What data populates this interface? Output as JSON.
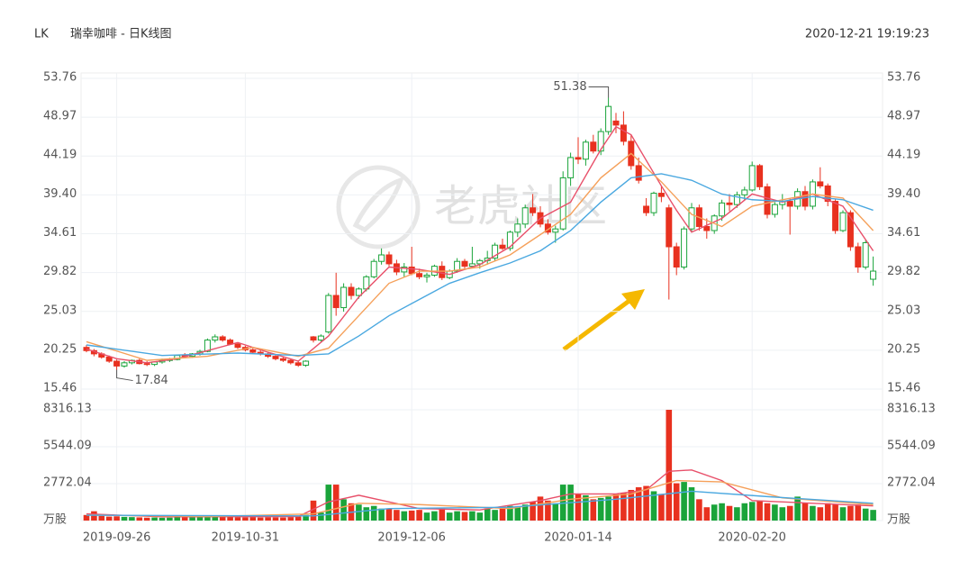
{
  "chart_data": {
    "type": "candlestick",
    "ticker": "LK",
    "title": "瑞幸咖啡 - 日K线图",
    "timestamp": "2020-12-21 19:19:23",
    "watermark": "老虎社区",
    "up_color": "#1aa43a",
    "down_color": "#e8311f",
    "categories": [
      null,
      null,
      null,
      null,
      "2019-09-26",
      null,
      null,
      null,
      null,
      null,
      null,
      null,
      null,
      null,
      null,
      null,
      null,
      null,
      null,
      null,
      null,
      "2019-10-31",
      null,
      null,
      null,
      null,
      null,
      null,
      null,
      null,
      null,
      null,
      null,
      null,
      null,
      null,
      null,
      null,
      null,
      null,
      null,
      null,
      null,
      "2019-12-06",
      null,
      null,
      null,
      null,
      null,
      null,
      null,
      null,
      null,
      null,
      null,
      null,
      null,
      null,
      null,
      null,
      null,
      null,
      null,
      null,
      null,
      "2020-01-14",
      null,
      null,
      null,
      null,
      null,
      null,
      null,
      null,
      null,
      null,
      null,
      null,
      null,
      null,
      null,
      null,
      null,
      null,
      null,
      null,
      null,
      null,
      "2020-02-20",
      null,
      null,
      null,
      null,
      null,
      null,
      null,
      null,
      null,
      null,
      null,
      null,
      null,
      null,
      null,
      null
    ],
    "open": [
      20.6,
      20.2,
      19.8,
      19.4,
      18.9,
      18.3,
      18.7,
      19.0,
      18.6,
      18.5,
      18.8,
      19.0,
      19.1,
      19.6,
      19.5,
      19.8,
      20.1,
      21.5,
      21.9,
      21.5,
      21.0,
      20.6,
      20.3,
      20.0,
      19.8,
      19.5,
      19.2,
      19.0,
      18.7,
      18.4,
      21.9,
      21.5,
      22.5,
      27.0,
      25.5,
      28.0,
      27.0,
      27.8,
      29.3,
      31.2,
      32.0,
      30.9,
      29.9,
      30.5,
      29.7,
      29.3,
      29.5,
      30.6,
      29.2,
      30.0,
      31.2,
      30.6,
      30.9,
      31.3,
      31.6,
      33.2,
      32.8,
      34.8,
      35.8,
      37.8,
      37.2,
      35.8,
      34.8,
      35.2,
      41.5,
      44.0,
      43.8,
      45.9,
      44.8,
      47.2,
      48.5,
      48.0,
      46.0,
      43.0,
      38.0,
      37.2,
      39.6,
      37.8,
      33.0,
      30.5,
      35.2,
      37.8,
      35.5,
      35.0,
      36.8,
      38.4,
      38.2,
      39.4,
      40.0,
      43.0,
      40.4,
      37.0,
      38.2,
      38.6,
      38.0,
      39.8,
      38.0,
      41.0,
      40.5,
      38.6,
      35.0,
      37.2,
      33.0,
      30.5,
      29.0
    ],
    "high": [
      20.9,
      20.4,
      20.0,
      19.6,
      19.1,
      18.9,
      19.1,
      19.2,
      18.9,
      18.9,
      19.2,
      19.3,
      19.7,
      19.9,
      19.9,
      20.3,
      21.7,
      22.2,
      22.1,
      21.7,
      21.2,
      20.8,
      20.5,
      20.3,
      20.0,
      19.7,
      19.4,
      19.2,
      19.0,
      19.0,
      22.0,
      22.2,
      27.3,
      29.8,
      28.5,
      28.5,
      28.0,
      29.5,
      31.5,
      32.8,
      32.4,
      31.4,
      31.0,
      33.0,
      30.3,
      29.8,
      30.8,
      31.2,
      30.2,
      31.6,
      31.5,
      33.0,
      31.5,
      32.5,
      33.5,
      34.0,
      35.0,
      36.5,
      38.2,
      39.5,
      38.0,
      36.4,
      35.6,
      42.3,
      44.6,
      46.5,
      46.2,
      46.8,
      47.6,
      51.38,
      49.5,
      49.7,
      46.8,
      44.0,
      39.0,
      39.8,
      40.5,
      38.2,
      33.5,
      35.5,
      38.4,
      38.2,
      36.5,
      37.0,
      38.8,
      39.5,
      39.8,
      40.4,
      43.5,
      43.2,
      40.8,
      38.5,
      39.5,
      39.0,
      40.2,
      40.5,
      41.3,
      42.8,
      40.8,
      38.9,
      37.5,
      37.5,
      33.5,
      33.8,
      31.8
    ],
    "low": [
      20.0,
      19.5,
      19.2,
      18.7,
      17.84,
      18.1,
      18.5,
      18.5,
      18.3,
      18.3,
      18.6,
      18.8,
      19.0,
      19.3,
      19.3,
      19.6,
      20.0,
      21.2,
      21.3,
      20.9,
      20.4,
      20.1,
      19.8,
      19.6,
      19.3,
      19.0,
      18.8,
      18.5,
      18.2,
      18.2,
      21.2,
      21.3,
      22.3,
      24.5,
      25.0,
      26.5,
      26.6,
      27.5,
      29.1,
      30.8,
      30.6,
      29.5,
      29.3,
      29.5,
      29.0,
      28.6,
      29.3,
      28.9,
      29.0,
      29.8,
      30.2,
      30.4,
      30.3,
      30.8,
      31.2,
      32.6,
      32.5,
      34.2,
      35.3,
      36.8,
      35.4,
      34.5,
      33.5,
      35.0,
      40.5,
      43.2,
      43.0,
      44.5,
      44.3,
      46.8,
      47.0,
      45.5,
      42.5,
      40.8,
      36.8,
      36.8,
      38.5,
      26.5,
      29.5,
      30.2,
      34.8,
      35.0,
      34.0,
      34.6,
      36.2,
      37.4,
      37.8,
      38.8,
      39.8,
      40.0,
      36.5,
      36.6,
      37.6,
      34.5,
      37.6,
      37.5,
      37.6,
      40.2,
      38.0,
      34.6,
      34.8,
      32.5,
      29.8,
      30.2,
      28.2
    ],
    "close": [
      20.2,
      19.8,
      19.4,
      18.9,
      18.3,
      18.7,
      19.0,
      18.6,
      18.5,
      18.8,
      19.0,
      19.1,
      19.6,
      19.5,
      19.8,
      20.1,
      21.5,
      21.9,
      21.5,
      21.0,
      20.6,
      20.3,
      20.0,
      19.8,
      19.5,
      19.2,
      19.0,
      18.7,
      18.4,
      18.9,
      21.5,
      22.0,
      27.0,
      25.5,
      28.0,
      27.0,
      27.8,
      29.3,
      31.2,
      32.0,
      30.9,
      29.9,
      30.5,
      29.7,
      29.3,
      29.5,
      30.6,
      29.2,
      30.0,
      31.2,
      30.6,
      30.9,
      31.3,
      31.6,
      33.2,
      32.8,
      34.8,
      35.8,
      37.8,
      37.2,
      35.8,
      34.8,
      35.2,
      41.5,
      44.0,
      43.8,
      45.9,
      44.8,
      47.2,
      50.3,
      48.0,
      46.0,
      43.0,
      41.2,
      37.2,
      39.6,
      39.2,
      33.0,
      30.5,
      35.2,
      37.8,
      35.5,
      35.0,
      36.8,
      38.4,
      38.2,
      39.4,
      40.0,
      43.0,
      40.4,
      37.0,
      38.2,
      38.6,
      38.0,
      39.8,
      38.0,
      41.0,
      40.5,
      38.6,
      35.0,
      37.2,
      33.0,
      30.5,
      33.5,
      30.0
    ],
    "ylim": [
      15.46,
      53.76
    ],
    "yticks": [
      53.76,
      48.97,
      44.19,
      {
        "value": 39.4,
        "label": "39.40"
      },
      34.61,
      29.82,
      25.03,
      20.25,
      15.46
    ],
    "lines": [
      {
        "color": "#e8506a",
        "x": [
          0,
          4,
          8,
          12,
          16,
          20,
          24,
          28,
          32,
          36,
          40,
          44,
          48,
          52,
          56,
          60,
          64,
          68,
          70,
          72,
          76,
          78,
          80,
          84,
          88,
          92,
          96,
          100,
          104
        ],
        "values": [
          20.4,
          19.2,
          18.7,
          19.2,
          20.2,
          21.2,
          20.0,
          18.9,
          22,
          26.8,
          30.5,
          30.2,
          29.6,
          30.8,
          33.0,
          36.5,
          38.5,
          45.0,
          47.8,
          46.8,
          40.5,
          37.5,
          34.8,
          36.5,
          39.5,
          38.5,
          39.5,
          38.0,
          32.5
        ]
      },
      {
        "color": "#f5a05a",
        "x": [
          0,
          8,
          16,
          22,
          28,
          32,
          36,
          40,
          44,
          48,
          52,
          56,
          60,
          64,
          68,
          72,
          76,
          80,
          84,
          88,
          92,
          96,
          100,
          104
        ],
        "values": [
          21.3,
          19.0,
          19.5,
          20.6,
          19.5,
          20.5,
          24.5,
          28.5,
          30.0,
          30.0,
          30.5,
          32.0,
          34.5,
          37.0,
          41.5,
          44.5,
          41.0,
          37.0,
          35.5,
          38.0,
          38.8,
          39.5,
          39.0,
          35.0
        ]
      },
      {
        "color": "#4aa8e0",
        "x": [
          0,
          10,
          20,
          28,
          32,
          36,
          40,
          44,
          48,
          52,
          56,
          60,
          64,
          68,
          72,
          76,
          80,
          84,
          88,
          92,
          96,
          100,
          104
        ],
        "values": [
          20.9,
          19.6,
          19.9,
          19.6,
          19.8,
          22,
          24.5,
          26.5,
          28.5,
          29.8,
          31.0,
          32.5,
          35.0,
          38.5,
          41.5,
          42.0,
          41.2,
          39.5,
          38.8,
          38.6,
          39.2,
          38.8,
          37.5
        ]
      }
    ],
    "volume": {
      "values": [
        420,
        700,
        350,
        300,
        320,
        280,
        260,
        240,
        220,
        230,
        210,
        220,
        260,
        250,
        240,
        300,
        380,
        300,
        290,
        270,
        250,
        240,
        260,
        230,
        250,
        240,
        230,
        260,
        300,
        420,
        1500,
        600,
        2700,
        2700,
        1600,
        1300,
        1200,
        1000,
        1100,
        900,
        900,
        800,
        700,
        750,
        800,
        600,
        700,
        900,
        600,
        700,
        650,
        700,
        600,
        900,
        800,
        1000,
        1100,
        1000,
        1200,
        1400,
        1800,
        1500,
        1300,
        2700,
        2700,
        2000,
        1900,
        1600,
        1700,
        1800,
        2000,
        2100,
        2300,
        2500,
        2600,
        2200,
        2000,
        8316.13,
        2800,
        2900,
        2500,
        1600,
        1000,
        1200,
        1300,
        1100,
        1000,
        1300,
        1400,
        1500,
        1300,
        1200,
        1000,
        1100,
        1800,
        1300,
        1100,
        1000,
        1300,
        1200,
        1000,
        1100,
        1200,
        900,
        800
      ],
      "ylim": [
        0,
        8316.13
      ],
      "yticks": [
        8316.13,
        5544.09,
        2772.04,
        {
          "value": 0,
          "label": "万股"
        }
      ],
      "lines": [
        {
          "color": "#e8506a",
          "x": [
            0,
            10,
            20,
            28,
            32,
            36,
            40,
            44,
            52,
            60,
            64,
            70,
            74,
            77,
            80,
            84,
            88,
            96,
            104
          ],
          "values": [
            500,
            280,
            290,
            300,
            1400,
            1900,
            1400,
            900,
            800,
            1500,
            2000,
            2000,
            2300,
            3700,
            3800,
            3000,
            1500,
            1300,
            1100
          ]
        },
        {
          "color": "#f5a05a",
          "x": [
            0,
            16,
            30,
            36,
            44,
            56,
            64,
            72,
            78,
            84,
            92,
            104
          ],
          "values": [
            420,
            300,
            500,
            1300,
            1200,
            900,
            1600,
            2000,
            3000,
            2900,
            1700,
            1200
          ]
        },
        {
          "color": "#4aa8e0",
          "x": [
            0,
            30,
            40,
            56,
            70,
            80,
            90,
            104
          ],
          "values": [
            400,
            350,
            900,
            1000,
            1600,
            2200,
            1800,
            1300
          ]
        }
      ]
    }
  }
}
